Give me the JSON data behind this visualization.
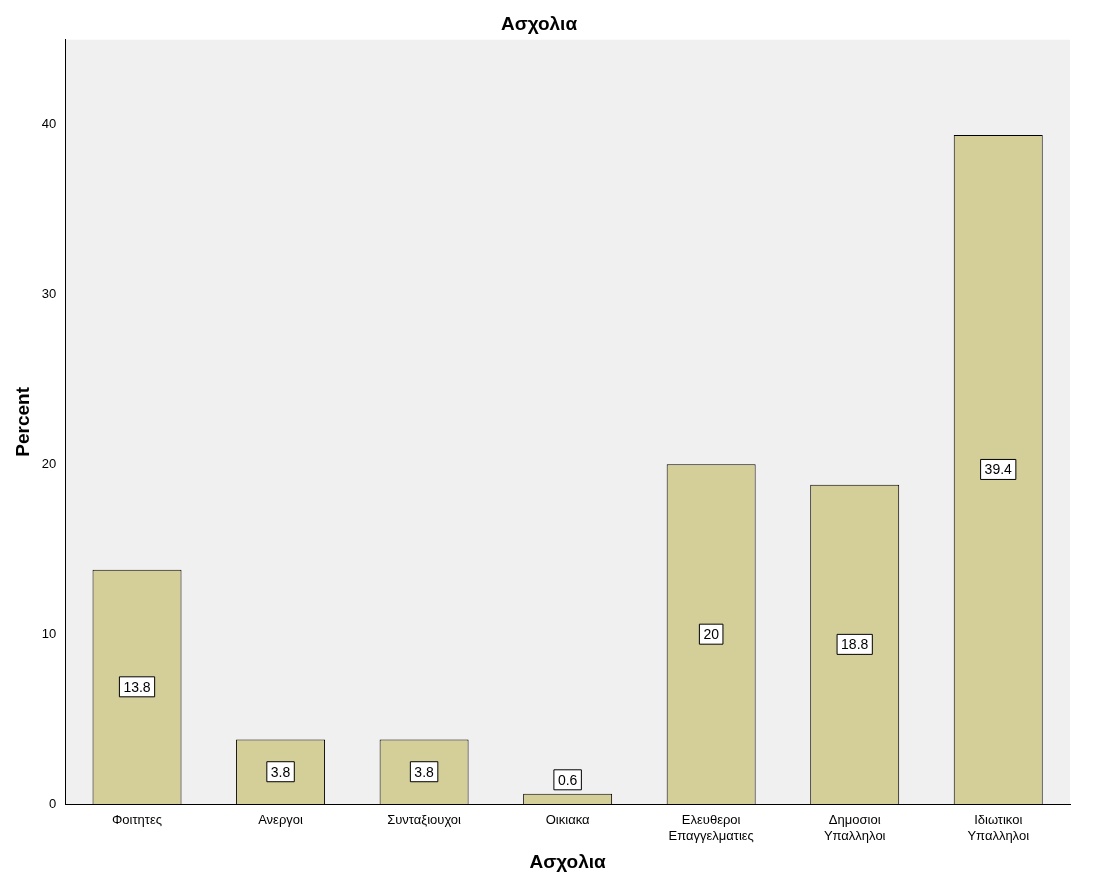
{
  "chart_data": {
    "type": "bar",
    "title": "Ασχολια",
    "xlabel": "Ασχολια",
    "ylabel": "Percent",
    "categories": [
      "Φοιτητες",
      "Ανεργοι",
      "Συνταξιουχοι",
      "Οικιακα",
      "Ελευθεροι Επαγγελματιες",
      "Δημοσιοι Υπαλληλοι",
      "Ιδιωτικοι Υπαλληλοι"
    ],
    "values": [
      13.8,
      3.8,
      3.8,
      0.6,
      20,
      18.8,
      39.4
    ],
    "color": "#d4cf99",
    "ylim": [
      0,
      45
    ],
    "yticks": [
      0,
      10,
      20,
      30,
      40
    ],
    "grid": false,
    "legend": false,
    "data_labels": true
  }
}
